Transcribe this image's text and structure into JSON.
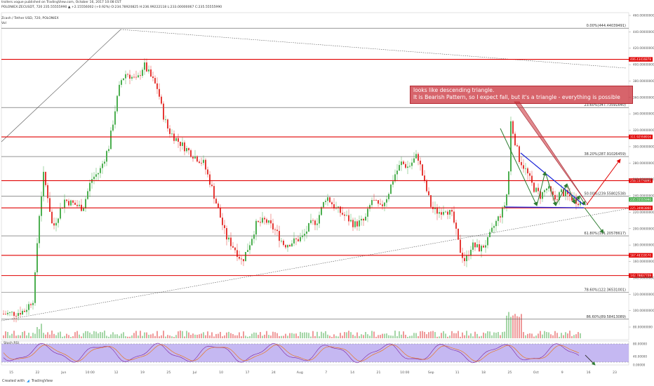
{
  "header": {
    "publisher_line": "trollers.vogue published on TradingView.com, October 16, 2017 10:08 EST",
    "ohlc_line": "POLONIEX:ZECUSDT, 720 235.55555990 ▲ +2.15556002 (+0.92%) O:234.78920825 H:236.99222118 L:233.00000067 C:235.55555990",
    "symbol_line": "Zcash / Tether USD, 720, POLONIEX",
    "vol_label": "Vol"
  },
  "note": {
    "line1": "looks like descending triangle.",
    "line2": "It is Bearish Pattern, so I expect fall, but it's a triangle - everything is possible"
  },
  "footer": {
    "created_with": "Created with",
    "brand": "TradingView"
  },
  "stoch": {
    "label": "Stoch RSI",
    "ticks": [
      "80.00000",
      "40.00000",
      "0.00000"
    ]
  },
  "colors": {
    "candle_up": "#4caf50",
    "candle_down": "#e53935",
    "hline_red": "#e00000",
    "fib_line": "#555555",
    "triangle_blue": "#1a23d8",
    "arrow_green": "#2e7d32",
    "arrow_red": "#e00000",
    "stoch_bg": "#c5b8f2",
    "stoch_line": "#7b1fa2"
  },
  "chart_data": {
    "type": "candlestick",
    "price_axis_ticks": [
      460,
      440,
      420,
      400,
      380,
      360,
      340,
      320,
      300,
      280,
      260,
      240,
      220,
      200,
      180,
      160,
      140,
      120,
      100,
      80
    ],
    "date_labels": [
      "15",
      "22",
      "Jun",
      "10:00",
      "12",
      "19",
      "25",
      "Jul",
      "10",
      "17",
      "24",
      "Aug",
      "7",
      "14",
      "21",
      "10:00",
      "Sep",
      "11",
      "18",
      "25",
      "Oct",
      "9",
      "16",
      "23"
    ],
    "horizontal_levels": [
      {
        "price": 406.43416878,
        "label": "406.43416878"
      },
      {
        "price": 311.92558916,
        "label": "311.92558916"
      },
      {
        "price": 258.53776891,
        "label": "258.53776891"
      },
      {
        "price": 225.3490386,
        "label": "225.34903860"
      },
      {
        "price": 167.4831957,
        "label": "167.48319570"
      },
      {
        "price": 142.78837709,
        "label": "142.78837709"
      }
    ],
    "fibonacci_levels": [
      {
        "price": 444.44039491,
        "label": "0.00%(444.44039491)"
      },
      {
        "price": 347.7359164,
        "label": "23.60%(347.73591640)"
      },
      {
        "price": 287.91026459,
        "label": "38.20%(287.91026459)"
      },
      {
        "price": 239.55802538,
        "label": "50.00%(239.55802538)"
      },
      {
        "price": 191.20578617,
        "label": "61.80%(191.20578617)"
      },
      {
        "price": 122.36531001,
        "label": "78.60%(122.36531001)"
      },
      {
        "price": 89.58413089,
        "label": "86.60%(89.58413089)"
      }
    ],
    "last_price": 235.5555599
  }
}
